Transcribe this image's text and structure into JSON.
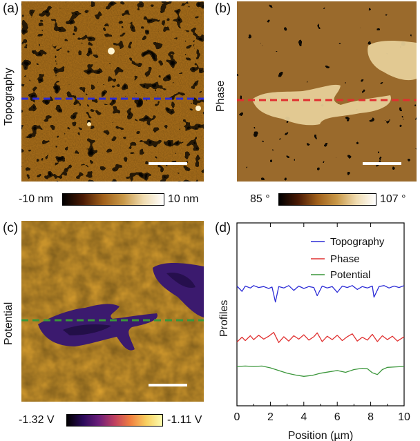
{
  "panels": {
    "a": {
      "letter": "(a)",
      "side_label": "Topography",
      "cbar_min": "-10 nm",
      "cbar_max": "10 nm"
    },
    "b": {
      "letter": "(b)",
      "side_label": "Phase",
      "cbar_min": "85 °",
      "cbar_max": "107 °"
    },
    "c": {
      "letter": "(c)",
      "side_label": "Potential",
      "cbar_min": "-1.32 V",
      "cbar_max": "-1.11 V"
    },
    "d": {
      "letter": "(d)"
    }
  },
  "colors": {
    "topography_line": "#2b2bd6",
    "phase_line": "#e03030",
    "potential_line": "#3a963a",
    "scale_bar": "#ffffff"
  },
  "chart_data": {
    "type": "line",
    "title": "",
    "xlabel": "Position (µm)",
    "ylabel": "Profiles",
    "xlim": [
      0,
      10
    ],
    "xticks": [
      "0",
      "2",
      "4",
      "6",
      "8",
      "10"
    ],
    "yticks_labeled": false,
    "legend_position": "top-right",
    "series": [
      {
        "name": "Topography",
        "x": [
          0,
          0.3,
          0.5,
          0.8,
          1.0,
          1.3,
          1.6,
          1.9,
          2.1,
          2.3,
          2.5,
          2.8,
          3.1,
          3.4,
          3.7,
          4.0,
          4.3,
          4.6,
          4.8,
          5.1,
          5.4,
          5.7,
          6.0,
          6.3,
          6.6,
          6.9,
          7.2,
          7.5,
          7.8,
          8.1,
          8.2,
          8.5,
          8.8,
          9.1,
          9.4,
          9.7,
          10.0
        ],
        "values": [
          0.5,
          -0.6,
          0.5,
          0.1,
          0.6,
          0.2,
          0.4,
          0.0,
          0.3,
          -2.8,
          0.4,
          0.1,
          0.6,
          -0.4,
          0.5,
          0.0,
          0.4,
          0.2,
          -1.5,
          0.5,
          0.1,
          0.4,
          -0.8,
          0.5,
          0.2,
          0.6,
          -0.2,
          0.4,
          0.1,
          0.5,
          -1.8,
          0.4,
          0.6,
          0.1,
          0.5,
          0.2,
          0.6
        ]
      },
      {
        "name": "Phase",
        "x": [
          0,
          0.3,
          0.5,
          0.8,
          1.0,
          1.3,
          1.6,
          1.9,
          2.2,
          2.5,
          2.8,
          3.1,
          3.4,
          3.7,
          4.0,
          4.3,
          4.6,
          4.8,
          5.1,
          5.4,
          5.7,
          6.0,
          6.3,
          6.6,
          6.9,
          7.2,
          7.5,
          7.8,
          8.1,
          8.4,
          8.7,
          9.0,
          9.3,
          9.6,
          10.0
        ],
        "values": [
          -0.8,
          0.2,
          -0.5,
          0.5,
          -0.3,
          0.6,
          -0.2,
          0.4,
          1.2,
          -0.9,
          0.3,
          -0.6,
          0.5,
          -0.2,
          0.7,
          -0.4,
          0.3,
          1.1,
          -0.7,
          0.4,
          -0.3,
          0.6,
          -0.5,
          0.3,
          0.9,
          -0.6,
          0.2,
          -0.4,
          0.8,
          -0.7,
          0.5,
          -0.3,
          0.4,
          -0.6,
          0.3
        ]
      },
      {
        "name": "Potential",
        "x": [
          0,
          0.5,
          1.0,
          1.5,
          2.0,
          2.5,
          3.0,
          3.5,
          4.0,
          4.5,
          5.0,
          5.5,
          6.0,
          6.5,
          7.0,
          7.5,
          7.8,
          8.1,
          8.4,
          8.7,
          9.0,
          9.5,
          10.0
        ],
        "values": [
          0.0,
          0.1,
          0.0,
          0.1,
          -0.3,
          -0.9,
          -1.5,
          -1.9,
          -2.2,
          -2.0,
          -1.5,
          -1.2,
          -0.9,
          -1.3,
          -0.7,
          -0.4,
          -0.5,
          -1.4,
          -1.8,
          -0.7,
          -0.2,
          -0.1,
          0.0
        ]
      }
    ]
  }
}
